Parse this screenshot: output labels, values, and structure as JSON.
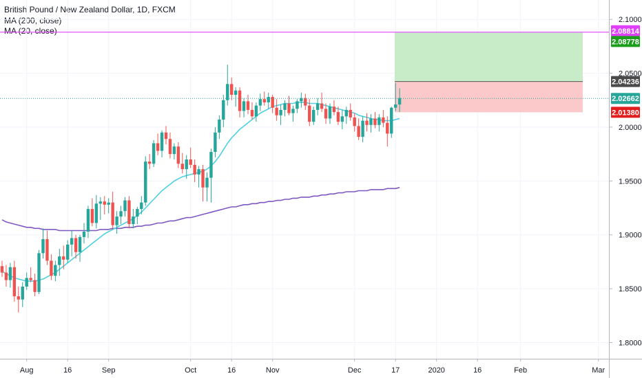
{
  "legend": {
    "symbol": "British Pound / New Zealand Dollar, 1D, FXCM",
    "ma200": "MA (200, close)",
    "ma20": "MA (20, close)"
  },
  "colors": {
    "up": "#26a69a",
    "down": "#ef5350",
    "ma20": "#4dd0e1",
    "ma200": "#7e57c2",
    "hline": "#e040fb",
    "profit_zone": "#c8ebc8",
    "loss_zone": "#fbc9c9",
    "last_price": "#26a69a",
    "entry_label": "#4a4a4a",
    "target_label": "#1b9e1b",
    "stop_label": "#e11d1d",
    "hline_label": "#e040fb"
  },
  "chart_data": {
    "type": "candlestick",
    "symbol": "GBPNZD",
    "timeframe": "1D",
    "ylim": [
      1.785,
      2.118
    ],
    "y_ticks": [
      "2.10000",
      "2.05000",
      "2.00000",
      "1.95000",
      "1.90000",
      "1.85000",
      "1.80000"
    ],
    "x_ticks": [
      "Aug",
      "16",
      "Sep",
      "Oct",
      "16",
      "Nov",
      "Dec",
      "17",
      "2020",
      "16",
      "Feb",
      "Mar"
    ],
    "candles_ohlc": [
      [
        1.871,
        1.876,
        1.861,
        1.865
      ],
      [
        1.865,
        1.872,
        1.852,
        1.858
      ],
      [
        1.858,
        1.874,
        1.851,
        1.87
      ],
      [
        1.87,
        1.876,
        1.838,
        1.843
      ],
      [
        1.843,
        1.852,
        1.828,
        1.84
      ],
      [
        1.84,
        1.856,
        1.833,
        1.852
      ],
      [
        1.852,
        1.865,
        1.849,
        1.86
      ],
      [
        1.86,
        1.87,
        1.856,
        1.858
      ],
      [
        1.858,
        1.864,
        1.843,
        1.847
      ],
      [
        1.847,
        1.886,
        1.845,
        1.883
      ],
      [
        1.883,
        1.906,
        1.878,
        1.896
      ],
      [
        1.896,
        1.904,
        1.872,
        1.876
      ],
      [
        1.876,
        1.882,
        1.858,
        1.862
      ],
      [
        1.862,
        1.876,
        1.857,
        1.872
      ],
      [
        1.872,
        1.887,
        1.862,
        1.88
      ],
      [
        1.88,
        1.89,
        1.868,
        1.877
      ],
      [
        1.877,
        1.895,
        1.874,
        1.891
      ],
      [
        1.891,
        1.904,
        1.88,
        1.897
      ],
      [
        1.897,
        1.9,
        1.878,
        1.884
      ],
      [
        1.884,
        1.9,
        1.875,
        1.898
      ],
      [
        1.898,
        1.911,
        1.892,
        1.903
      ],
      [
        1.903,
        1.927,
        1.897,
        1.924
      ],
      [
        1.924,
        1.934,
        1.908,
        1.911
      ],
      [
        1.911,
        1.937,
        1.906,
        1.929
      ],
      [
        1.929,
        1.935,
        1.914,
        1.931
      ],
      [
        1.931,
        1.936,
        1.919,
        1.928
      ],
      [
        1.928,
        1.934,
        1.92,
        1.93
      ],
      [
        1.93,
        1.94,
        1.905,
        1.909
      ],
      [
        1.909,
        1.922,
        1.901,
        1.917
      ],
      [
        1.917,
        1.927,
        1.91,
        1.922
      ],
      [
        1.922,
        1.935,
        1.917,
        1.932
      ],
      [
        1.932,
        1.936,
        1.906,
        1.91
      ],
      [
        1.91,
        1.924,
        1.906,
        1.917
      ],
      [
        1.917,
        1.926,
        1.91,
        1.924
      ],
      [
        1.924,
        1.936,
        1.919,
        1.93
      ],
      [
        1.93,
        1.973,
        1.927,
        1.968
      ],
      [
        1.968,
        1.975,
        1.961,
        1.966
      ],
      [
        1.966,
        1.988,
        1.963,
        1.985
      ],
      [
        1.985,
        1.994,
        1.974,
        1.978
      ],
      [
        1.978,
        1.997,
        1.972,
        1.995
      ],
      [
        1.995,
        2.001,
        1.984,
        1.989
      ],
      [
        1.989,
        1.995,
        1.971,
        1.975
      ],
      [
        1.975,
        1.985,
        1.97,
        1.982
      ],
      [
        1.982,
        1.986,
        1.962,
        1.966
      ],
      [
        1.966,
        1.976,
        1.957,
        1.961
      ],
      [
        1.961,
        1.974,
        1.952,
        1.97
      ],
      [
        1.97,
        1.981,
        1.962,
        1.965
      ],
      [
        1.965,
        1.97,
        1.949,
        1.956
      ],
      [
        1.956,
        1.964,
        1.944,
        1.961
      ],
      [
        1.961,
        1.965,
        1.931,
        1.944
      ],
      [
        1.944,
        1.958,
        1.931,
        1.953
      ],
      [
        1.953,
        1.98,
        1.93,
        1.977
      ],
      [
        1.977,
        2.0,
        1.972,
        1.995
      ],
      [
        1.995,
        2.011,
        1.989,
        2.007
      ],
      [
        2.007,
        2.03,
        2.0,
        2.025
      ],
      [
        2.025,
        2.058,
        2.02,
        2.04
      ],
      [
        2.04,
        2.046,
        2.025,
        2.03
      ],
      [
        2.03,
        2.037,
        2.019,
        2.034
      ],
      [
        2.034,
        2.037,
        2.009,
        2.015
      ],
      [
        2.015,
        2.027,
        2.009,
        2.024
      ],
      [
        2.024,
        2.03,
        2.012,
        2.016
      ],
      [
        2.016,
        2.023,
        2.007,
        2.01
      ],
      [
        2.01,
        2.023,
        2.005,
        2.02
      ],
      [
        2.02,
        2.031,
        2.015,
        2.026
      ],
      [
        2.026,
        2.033,
        2.02,
        2.023
      ],
      [
        2.023,
        2.032,
        2.017,
        2.028
      ],
      [
        2.028,
        2.03,
        2.013,
        2.018
      ],
      [
        2.018,
        2.026,
        2.006,
        2.011
      ],
      [
        2.011,
        2.021,
        2.002,
        2.016
      ],
      [
        2.016,
        2.025,
        2.01,
        2.022
      ],
      [
        2.022,
        2.029,
        2.011,
        2.013
      ],
      [
        2.013,
        2.02,
        2.005,
        2.017
      ],
      [
        2.017,
        2.026,
        2.013,
        2.024
      ],
      [
        2.024,
        2.032,
        2.018,
        2.027
      ],
      [
        2.027,
        2.031,
        2.016,
        2.02
      ],
      [
        2.02,
        2.026,
        2.001,
        2.005
      ],
      [
        2.005,
        2.019,
        2.002,
        2.016
      ],
      [
        2.016,
        2.027,
        2.011,
        2.022
      ],
      [
        2.022,
        2.032,
        2.014,
        2.017
      ],
      [
        2.017,
        2.022,
        2.003,
        2.008
      ],
      [
        2.008,
        2.022,
        2.003,
        2.019
      ],
      [
        2.019,
        2.025,
        2.011,
        2.014
      ],
      [
        2.014,
        2.019,
        2.002,
        2.005
      ],
      [
        2.005,
        2.016,
        1.998,
        2.01
      ],
      [
        2.01,
        2.019,
        2.003,
        2.016
      ],
      [
        2.016,
        2.022,
        2.006,
        2.009
      ],
      [
        2.009,
        2.013,
        1.996,
        2.001
      ],
      [
        2.001,
        2.008,
        1.988,
        1.991
      ],
      [
        1.991,
        2.01,
        1.986,
        2.006
      ],
      [
        2.006,
        2.013,
        1.996,
        2.002
      ],
      [
        2.002,
        2.012,
        1.995,
        2.008
      ],
      [
        2.008,
        2.014,
        1.999,
        2.002
      ],
      [
        2.002,
        2.012,
        1.996,
        2.009
      ],
      [
        2.009,
        2.016,
        2.0,
        2.004
      ],
      [
        2.004,
        2.01,
        1.982,
        1.994
      ],
      [
        1.994,
        2.019,
        1.99,
        2.018
      ],
      [
        2.018,
        2.041,
        2.015,
        2.021
      ],
      [
        2.021,
        2.036,
        2.014,
        2.027
      ]
    ],
    "ma20": [
      1.866,
      1.864,
      1.862,
      1.86,
      1.859,
      1.858,
      1.857,
      1.857,
      1.857,
      1.858,
      1.859,
      1.861,
      1.863,
      1.865,
      1.868,
      1.871,
      1.874,
      1.877,
      1.88,
      1.883,
      1.886,
      1.889,
      1.892,
      1.895,
      1.898,
      1.901,
      1.903,
      1.905,
      1.907,
      1.909,
      1.911,
      1.913,
      1.915,
      1.918,
      1.921,
      1.925,
      1.929,
      1.933,
      1.937,
      1.941,
      1.944,
      1.947,
      1.95,
      1.952,
      1.954,
      1.955,
      1.956,
      1.957,
      1.958,
      1.959,
      1.961,
      1.964,
      1.968,
      1.973,
      1.979,
      1.985,
      1.99,
      1.994,
      1.998,
      2.001,
      2.004,
      2.007,
      2.01,
      2.013,
      2.015,
      2.017,
      2.019,
      2.02,
      2.021,
      2.022,
      2.022,
      2.022,
      2.023,
      2.023,
      2.023,
      2.022,
      2.022,
      2.022,
      2.021,
      2.02,
      2.019,
      2.018,
      2.017,
      2.016,
      2.015,
      2.014,
      2.013,
      2.011,
      2.01,
      2.009,
      2.008,
      2.007,
      2.007,
      2.006,
      2.006,
      2.006,
      2.007,
      2.008
    ],
    "ma200": [
      1.914,
      1.912,
      1.911,
      1.91,
      1.909,
      1.908,
      1.907,
      1.907,
      1.906,
      1.906,
      1.905,
      1.905,
      1.905,
      1.905,
      1.904,
      1.904,
      1.904,
      1.904,
      1.904,
      1.904,
      1.904,
      1.904,
      1.904,
      1.904,
      1.905,
      1.905,
      1.905,
      1.906,
      1.906,
      1.906,
      1.907,
      1.907,
      1.907,
      1.908,
      1.908,
      1.909,
      1.909,
      1.91,
      1.911,
      1.911,
      1.912,
      1.913,
      1.913,
      1.914,
      1.915,
      1.916,
      1.916,
      1.917,
      1.918,
      1.919,
      1.92,
      1.921,
      1.922,
      1.923,
      1.924,
      1.925,
      1.926,
      1.926,
      1.927,
      1.928,
      1.928,
      1.929,
      1.929,
      1.93,
      1.93,
      1.931,
      1.931,
      1.932,
      1.932,
      1.933,
      1.933,
      1.934,
      1.934,
      1.935,
      1.935,
      1.935,
      1.936,
      1.936,
      1.937,
      1.937,
      1.938,
      1.938,
      1.939,
      1.939,
      1.94,
      1.94,
      1.94,
      1.941,
      1.941,
      1.941,
      1.942,
      1.942,
      1.942,
      1.942,
      1.943,
      1.943,
      1.943,
      1.944
    ],
    "horizontal_line": 2.08814,
    "last_price": 2.02662,
    "position": {
      "entry": 2.04236,
      "target": 2.08778,
      "stop": 2.0138
    },
    "price_labels": {
      "hline": "2.08814",
      "target": "2.08778",
      "entry": "2.04236",
      "last": "2.02662",
      "stop": "2.01380"
    }
  }
}
